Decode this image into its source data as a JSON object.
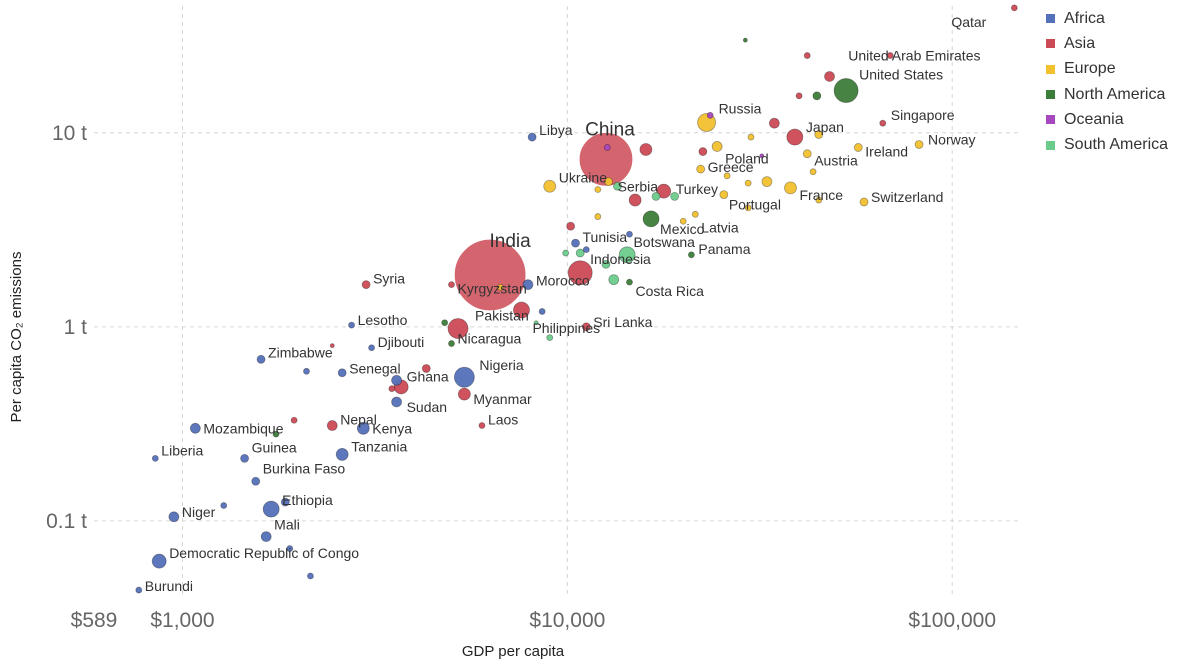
{
  "chart_data": {
    "type": "scatter",
    "title": "",
    "xlabel": "GDP per capita",
    "ylabel": "Per capita CO₂ emissions",
    "x_scale": "log",
    "y_scale": "log",
    "xlim": [
      589,
      150000
    ],
    "ylim": [
      0.042,
      45
    ],
    "x_ticks": [
      {
        "value": 589,
        "label": "$589"
      },
      {
        "value": 1000,
        "label": "$1,000"
      },
      {
        "value": 10000,
        "label": "$10,000"
      },
      {
        "value": 100000,
        "label": "$100,000"
      }
    ],
    "y_ticks": [
      {
        "value": 0.1,
        "label": "0.1 t"
      },
      {
        "value": 1,
        "label": "1 t"
      },
      {
        "value": 10,
        "label": "10 t"
      }
    ],
    "grid": true,
    "legend_position": "top-right",
    "legend": [
      {
        "name": "Africa",
        "color": "#5470b8"
      },
      {
        "name": "Asia",
        "color": "#cc4a55"
      },
      {
        "name": "Europe",
        "color": "#f2c12e"
      },
      {
        "name": "North America",
        "color": "#3d7d3a"
      },
      {
        "name": "Oceania",
        "color": "#a848c0"
      },
      {
        "name": "South America",
        "color": "#6bcb8b"
      }
    ],
    "series": [
      {
        "name": "Africa",
        "points": [
          {
            "label": "Libya",
            "x": 8100,
            "y": 9.5,
            "size": 4
          },
          {
            "label": "Tunisia",
            "x": 10500,
            "y": 2.7,
            "size": 4
          },
          {
            "label": "Botswana",
            "x": 14500,
            "y": 3.0,
            "size": 3
          },
          {
            "label": "Morocco",
            "x": 7900,
            "y": 1.65,
            "size": 5
          },
          {
            "label": "Lesotho",
            "x": 2750,
            "y": 1.02,
            "size": 3
          },
          {
            "label": "Djibouti",
            "x": 3100,
            "y": 0.78,
            "size": 3
          },
          {
            "label": "Zimbabwe",
            "x": 1600,
            "y": 0.68,
            "size": 4
          },
          {
            "label": "Senegal",
            "x": 2600,
            "y": 0.58,
            "size": 4
          },
          {
            "label": "Ghana",
            "x": 3600,
            "y": 0.53,
            "size": 5
          },
          {
            "label": "Nigeria",
            "x": 5400,
            "y": 0.55,
            "size": 10
          },
          {
            "label": "Sudan",
            "x": 3600,
            "y": 0.41,
            "size": 5
          },
          {
            "label": "Kenya",
            "x": 2950,
            "y": 0.3,
            "size": 6
          },
          {
            "label": "Tanzania",
            "x": 2600,
            "y": 0.22,
            "size": 6
          },
          {
            "label": "Mozambique",
            "x": 1080,
            "y": 0.3,
            "size": 5
          },
          {
            "label": "Liberia",
            "x": 850,
            "y": 0.21,
            "size": 3
          },
          {
            "label": "Guinea",
            "x": 1450,
            "y": 0.21,
            "size": 4
          },
          {
            "label": "Burkina Faso",
            "x": 1550,
            "y": 0.16,
            "size": 4
          },
          {
            "label": "Ethiopia",
            "x": 1700,
            "y": 0.115,
            "size": 8
          },
          {
            "label": "Niger",
            "x": 950,
            "y": 0.105,
            "size": 5
          },
          {
            "label": "Mali",
            "x": 1650,
            "y": 0.083,
            "size": 5
          },
          {
            "label": "Democratic Republic of Congo",
            "x": 870,
            "y": 0.062,
            "size": 7
          },
          {
            "label": "Burundi",
            "x": 770,
            "y": 0.044,
            "size": 3
          },
          {
            "label": "",
            "x": 2150,
            "y": 0.052,
            "size": 3
          },
          {
            "label": "",
            "x": 1850,
            "y": 0.125,
            "size": 4
          },
          {
            "label": "",
            "x": 1280,
            "y": 0.12,
            "size": 3
          },
          {
            "label": "",
            "x": 2100,
            "y": 0.59,
            "size": 3
          },
          {
            "label": "",
            "x": 11200,
            "y": 2.5,
            "size": 3
          },
          {
            "label": "",
            "x": 8600,
            "y": 1.2,
            "size": 3
          },
          {
            "label": "",
            "x": 1900,
            "y": 0.072,
            "size": 3
          }
        ]
      },
      {
        "name": "Asia",
        "points": [
          {
            "label": "Qatar",
            "x": 145000,
            "y": 44,
            "size": 3
          },
          {
            "label": "United Arab Emirates",
            "x": 69000,
            "y": 25,
            "size": 3
          },
          {
            "label": "Singapore",
            "x": 66000,
            "y": 11.2,
            "size": 3
          },
          {
            "label": "Japan",
            "x": 39000,
            "y": 9.5,
            "size": 8
          },
          {
            "label": "China",
            "x": 12600,
            "y": 7.3,
            "size": 27
          },
          {
            "label": "Turkey",
            "x": 17800,
            "y": 5.0,
            "size": 7
          },
          {
            "label": "India",
            "x": 6300,
            "y": 1.85,
            "size": 36
          },
          {
            "label": "Kyrgyzstan",
            "x": 5000,
            "y": 1.65,
            "size": 3
          },
          {
            "label": "Syria",
            "x": 3000,
            "y": 1.65,
            "size": 4
          },
          {
            "label": "Philippines",
            "x": 7600,
            "y": 1.22,
            "size": 8
          },
          {
            "label": "Pakistan",
            "x": 5200,
            "y": 0.98,
            "size": 10
          },
          {
            "label": "Sri Lanka",
            "x": 11200,
            "y": 1.0,
            "size": 4
          },
          {
            "label": "Myanmar",
            "x": 5400,
            "y": 0.45,
            "size": 6
          },
          {
            "label": "Nepal",
            "x": 2450,
            "y": 0.31,
            "size": 5
          },
          {
            "label": "Laos",
            "x": 6000,
            "y": 0.31,
            "size": 3
          },
          {
            "label": "",
            "x": 10800,
            "y": 1.9,
            "size": 12
          },
          {
            "label": "",
            "x": 16000,
            "y": 8.2,
            "size": 6
          },
          {
            "label": "",
            "x": 34500,
            "y": 11.2,
            "size": 5
          },
          {
            "label": "",
            "x": 40000,
            "y": 15.5,
            "size": 3
          },
          {
            "label": "",
            "x": 48000,
            "y": 19.5,
            "size": 5
          },
          {
            "label": "",
            "x": 3700,
            "y": 0.49,
            "size": 7
          },
          {
            "label": "",
            "x": 4300,
            "y": 0.61,
            "size": 4
          },
          {
            "label": "",
            "x": 3500,
            "y": 0.48,
            "size": 3
          },
          {
            "label": "",
            "x": 15000,
            "y": 4.5,
            "size": 6
          },
          {
            "label": "",
            "x": 10200,
            "y": 3.3,
            "size": 4
          },
          {
            "label": "",
            "x": 1950,
            "y": 0.33,
            "size": 3
          },
          {
            "label": "",
            "x": 22500,
            "y": 8.0,
            "size": 4
          },
          {
            "label": "",
            "x": 42000,
            "y": 25,
            "size": 3
          },
          {
            "label": "",
            "x": 2450,
            "y": 0.8,
            "size": 2
          }
        ]
      },
      {
        "name": "Europe",
        "points": [
          {
            "label": "Russia",
            "x": 23000,
            "y": 11.3,
            "size": 9
          },
          {
            "label": "Poland",
            "x": 24500,
            "y": 8.5,
            "size": 5
          },
          {
            "label": "Ukraine",
            "x": 9000,
            "y": 5.3,
            "size": 6
          },
          {
            "label": "Serbia",
            "x": 12800,
            "y": 5.6,
            "size": 4
          },
          {
            "label": "Greece",
            "x": 22200,
            "y": 6.5,
            "size": 4
          },
          {
            "label": "Portugal",
            "x": 25500,
            "y": 4.8,
            "size": 4
          },
          {
            "label": "France",
            "x": 38000,
            "y": 5.2,
            "size": 6
          },
          {
            "label": "Latvia",
            "x": 21500,
            "y": 3.8,
            "size": 3
          },
          {
            "label": "Austria",
            "x": 42000,
            "y": 7.8,
            "size": 4
          },
          {
            "label": "Ireland",
            "x": 57000,
            "y": 8.4,
            "size": 4
          },
          {
            "label": "Norway",
            "x": 82000,
            "y": 8.7,
            "size": 4
          },
          {
            "label": "Switzerland",
            "x": 59000,
            "y": 4.4,
            "size": 4
          },
          {
            "label": "",
            "x": 45000,
            "y": 9.8,
            "size": 4
          },
          {
            "label": "",
            "x": 33000,
            "y": 5.6,
            "size": 5
          },
          {
            "label": "",
            "x": 29500,
            "y": 5.5,
            "size": 3
          },
          {
            "label": "",
            "x": 45000,
            "y": 4.5,
            "size": 3
          },
          {
            "label": "",
            "x": 29500,
            "y": 4.1,
            "size": 3
          },
          {
            "label": "",
            "x": 30000,
            "y": 9.5,
            "size": 3
          },
          {
            "label": "",
            "x": 26000,
            "y": 6.0,
            "size": 3
          },
          {
            "label": "",
            "x": 20000,
            "y": 3.5,
            "size": 3
          },
          {
            "label": "",
            "x": 43500,
            "y": 6.3,
            "size": 3
          },
          {
            "label": "",
            "x": 12000,
            "y": 3.7,
            "size": 3
          },
          {
            "label": "",
            "x": 12000,
            "y": 5.1,
            "size": 3
          },
          {
            "label": "",
            "x": 6700,
            "y": 1.6,
            "size": 3
          }
        ]
      },
      {
        "name": "North America",
        "points": [
          {
            "label": "United States",
            "x": 53000,
            "y": 16.5,
            "size": 12
          },
          {
            "label": "Mexico",
            "x": 16500,
            "y": 3.6,
            "size": 8
          },
          {
            "label": "Panama",
            "x": 21000,
            "y": 2.35,
            "size": 3
          },
          {
            "label": "Costa Rica",
            "x": 14500,
            "y": 1.7,
            "size": 3
          },
          {
            "label": "Nicaragua",
            "x": 5000,
            "y": 0.82,
            "size": 3
          },
          {
            "label": "",
            "x": 44500,
            "y": 15.5,
            "size": 4
          },
          {
            "label": "",
            "x": 29000,
            "y": 30,
            "size": 2
          },
          {
            "label": "",
            "x": 1750,
            "y": 0.28,
            "size": 3
          },
          {
            "label": "",
            "x": 4800,
            "y": 1.05,
            "size": 3
          }
        ]
      },
      {
        "name": "Oceania",
        "points": [
          {
            "label": "",
            "x": 12700,
            "y": 8.4,
            "size": 3
          },
          {
            "label": "",
            "x": 23500,
            "y": 12.3,
            "size": 3
          },
          {
            "label": "",
            "x": 32000,
            "y": 7.6,
            "size": 2
          }
        ]
      },
      {
        "name": "South America",
        "points": [
          {
            "label": "Indonesia",
            "x": 14300,
            "y": 2.35,
            "size": 8
          },
          {
            "label": "",
            "x": 13200,
            "y": 1.75,
            "size": 5
          },
          {
            "label": "",
            "x": 13500,
            "y": 5.3,
            "size": 4
          },
          {
            "label": "",
            "x": 19000,
            "y": 4.7,
            "size": 4
          },
          {
            "label": "",
            "x": 17000,
            "y": 4.7,
            "size": 4
          },
          {
            "label": "",
            "x": 10800,
            "y": 2.4,
            "size": 4
          },
          {
            "label": "",
            "x": 12600,
            "y": 2.1,
            "size": 4
          },
          {
            "label": "",
            "x": 9900,
            "y": 2.4,
            "size": 3
          },
          {
            "label": "",
            "x": 9000,
            "y": 0.88,
            "size": 3
          },
          {
            "label": "",
            "x": 8300,
            "y": 1.05,
            "size": 2
          }
        ]
      }
    ]
  }
}
